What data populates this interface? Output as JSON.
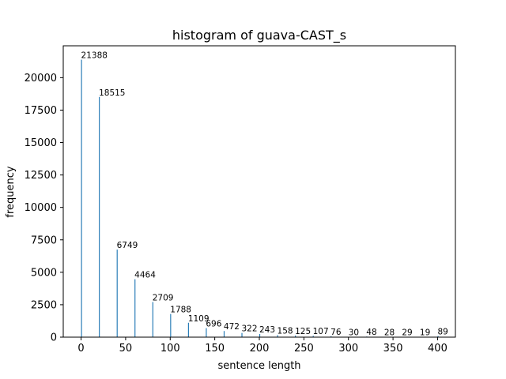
{
  "chart_data": {
    "type": "bar",
    "title": "histogram of guava-CAST_s",
    "xlabel": "sentence length",
    "ylabel": "frequency",
    "x": [
      0,
      20,
      40,
      60,
      80,
      100,
      120,
      140,
      160,
      180,
      200,
      220,
      240,
      260,
      280,
      300,
      320,
      340,
      360,
      380,
      400
    ],
    "values": [
      21388,
      18515,
      6749,
      4464,
      2709,
      1788,
      1109,
      696,
      472,
      322,
      243,
      158,
      125,
      107,
      76,
      30,
      48,
      28,
      29,
      19,
      89
    ],
    "bar_width": 1,
    "xlim": [
      -20,
      420
    ],
    "ylim": [
      0,
      22457
    ],
    "xticks": [
      0,
      50,
      100,
      150,
      200,
      250,
      300,
      350,
      400
    ],
    "yticks": [
      0,
      2500,
      5000,
      7500,
      10000,
      12500,
      15000,
      17500,
      20000
    ],
    "bar_color": "#1f77b4",
    "grid": false,
    "legend": "none"
  }
}
